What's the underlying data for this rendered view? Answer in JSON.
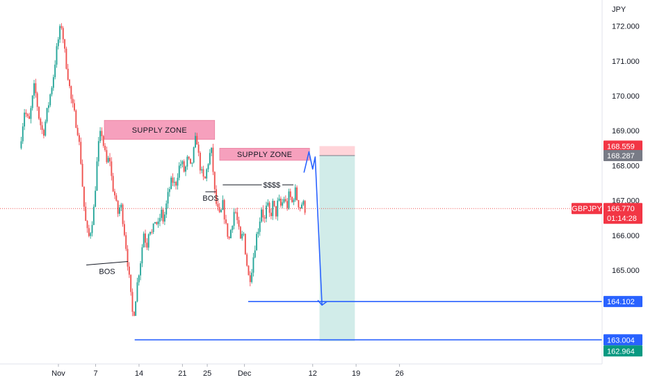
{
  "chart_data": {
    "type": "candlestick",
    "symbol": "GBPJPY",
    "currency_label": "JPY",
    "colors": {
      "up": "#26a69a",
      "down": "#ef5350",
      "wick_up": "#089981",
      "wick_down": "#f23645",
      "supply_zone": "#f48fb1",
      "drawing": "#2962ff",
      "target_zone": "#b2dfdb",
      "stop_zone": "#ffcdd2",
      "price_tag": "#f23645",
      "gray_tag": "#787b86",
      "green_tag": "#089981"
    },
    "ylim": [
      162.95,
      172.55
    ],
    "y_ticks": [
      "172.000",
      "171.000",
      "170.000",
      "169.000",
      "168.000",
      "167.000",
      "166.000",
      "165.000"
    ],
    "x_ticks": [
      {
        "label": "Nov",
        "day": 0
      },
      {
        "label": "7",
        "day": 6
      },
      {
        "label": "14",
        "day": 13
      },
      {
        "label": "21",
        "day": 20
      },
      {
        "label": "25",
        "day": 24
      },
      {
        "label": "Dec",
        "day": 30
      },
      {
        "label": "12",
        "day": 41
      },
      {
        "label": "19",
        "day": 48
      },
      {
        "label": "26",
        "day": 55
      }
    ],
    "last_day": 40,
    "current_price": 166.77,
    "current_label": "166.770",
    "countdown": "01:14:28",
    "price_path": [
      [
        -6,
        168.5
      ],
      [
        -5.2,
        169.6
      ],
      [
        -4.5,
        169.2
      ],
      [
        -3.6,
        170.3
      ],
      [
        -2.8,
        169.3
      ],
      [
        -2.2,
        168.9
      ],
      [
        -1.2,
        169.9
      ],
      [
        -0.6,
        170.5
      ],
      [
        -0.2,
        171.1
      ],
      [
        0.4,
        171.8
      ],
      [
        0.8,
        172.05
      ],
      [
        1.3,
        171.2
      ],
      [
        1.8,
        170.6
      ],
      [
        2.3,
        169.9
      ],
      [
        2.9,
        169.4
      ],
      [
        3.4,
        169.0
      ],
      [
        3.9,
        168.1
      ],
      [
        4.3,
        167.0
      ],
      [
        4.7,
        166.3
      ],
      [
        5.1,
        165.9
      ],
      [
        5.5,
        166.2
      ],
      [
        6.0,
        166.8
      ],
      [
        6.4,
        167.9
      ],
      [
        6.8,
        168.7
      ],
      [
        7.2,
        169.0
      ],
      [
        7.6,
        168.5
      ],
      [
        8.1,
        168.0
      ],
      [
        8.5,
        168.3
      ],
      [
        8.9,
        167.5
      ],
      [
        9.4,
        167.1
      ],
      [
        9.8,
        166.6
      ],
      [
        10.3,
        166.9
      ],
      [
        10.7,
        166.4
      ],
      [
        11.1,
        165.8
      ],
      [
        11.5,
        165.1
      ],
      [
        11.9,
        164.3
      ],
      [
        12.3,
        163.6
      ],
      [
        12.7,
        164.2
      ],
      [
        13.1,
        164.8
      ],
      [
        13.6,
        165.4
      ],
      [
        14.0,
        166.1
      ],
      [
        14.5,
        165.7
      ],
      [
        14.9,
        166.3
      ],
      [
        15.4,
        166.0
      ],
      [
        15.9,
        166.5
      ],
      [
        16.3,
        166.2
      ],
      [
        16.8,
        166.7
      ],
      [
        17.2,
        166.4
      ],
      [
        17.7,
        166.9
      ],
      [
        18.1,
        167.3
      ],
      [
        18.6,
        167.6
      ],
      [
        19.1,
        167.4
      ],
      [
        19.6,
        167.9
      ],
      [
        20.1,
        168.1
      ],
      [
        20.6,
        167.8
      ],
      [
        21.1,
        168.2
      ],
      [
        21.6,
        167.9
      ],
      [
        22.0,
        168.3
      ],
      [
        22.5,
        168.9
      ],
      [
        22.9,
        168.2
      ],
      [
        23.3,
        167.8
      ],
      [
        23.8,
        167.5
      ],
      [
        24.2,
        167.9
      ],
      [
        24.6,
        168.3
      ],
      [
        25.0,
        168.4
      ],
      [
        25.4,
        167.3
      ],
      [
        25.8,
        166.8
      ],
      [
        26.3,
        166.5
      ],
      [
        26.8,
        166.9
      ],
      [
        27.3,
        166.2
      ],
      [
        27.8,
        165.9
      ],
      [
        28.3,
        166.4
      ],
      [
        28.7,
        166.8
      ],
      [
        29.2,
        166.3
      ],
      [
        29.6,
        165.8
      ],
      [
        30.1,
        166.1
      ],
      [
        30.5,
        165.4
      ],
      [
        31.0,
        164.7
      ],
      [
        31.3,
        164.9
      ],
      [
        31.7,
        165.4
      ],
      [
        32.1,
        165.9
      ],
      [
        32.6,
        166.3
      ],
      [
        33.0,
        166.8
      ],
      [
        33.5,
        166.4
      ],
      [
        33.9,
        166.9
      ],
      [
        34.4,
        166.5
      ],
      [
        34.8,
        166.9
      ],
      [
        35.3,
        166.6
      ],
      [
        35.7,
        167.0
      ],
      [
        36.2,
        166.8
      ],
      [
        36.6,
        167.1
      ],
      [
        37.1,
        166.8
      ],
      [
        37.5,
        167.2
      ],
      [
        37.9,
        166.9
      ],
      [
        38.4,
        167.3
      ],
      [
        38.8,
        167.0
      ],
      [
        39.2,
        166.8
      ],
      [
        39.6,
        166.95
      ],
      [
        40.0,
        166.77
      ]
    ],
    "supply_zones": [
      {
        "label": "SUPPLY ZONE",
        "x0": 7.4,
        "x1": 25.2,
        "y0": 168.75,
        "y1": 169.3
      },
      {
        "label": "SUPPLY ZONE",
        "x0": 26.0,
        "x1": 40.5,
        "y0": 168.15,
        "y1": 168.5
      }
    ],
    "bos_markers": [
      {
        "label": "BOS",
        "x0": 4.5,
        "x1": 11.2,
        "y0": 165.15,
        "y1": 165.25
      },
      {
        "label": "BOS",
        "x0": 23.7,
        "x1": 25.4,
        "y0": 167.25,
        "y1": 167.25
      }
    ],
    "liquidity": {
      "label": "$$$$",
      "x0": 26.5,
      "x1": 37.9,
      "y": 167.45
    },
    "horizontal_levels": [
      {
        "price": 164.102,
        "label": "164.102",
        "x0": 30.6
      },
      {
        "price": 163.004,
        "label": "163.004",
        "x0": 12.3
      }
    ],
    "position": {
      "x0": 42.1,
      "x1": 47.8,
      "entry": 168.287,
      "stop": 168.559,
      "target": 162.964
    },
    "price_tags": {
      "stop": "168.559",
      "entry": "168.287",
      "target": "162.964",
      "symbol": "GBPJPY"
    },
    "projection": [
      [
        39.6,
        167.8
      ],
      [
        40.4,
        168.4
      ],
      [
        41.0,
        167.9
      ],
      [
        41.4,
        168.25
      ],
      [
        42.5,
        164.0
      ]
    ]
  }
}
